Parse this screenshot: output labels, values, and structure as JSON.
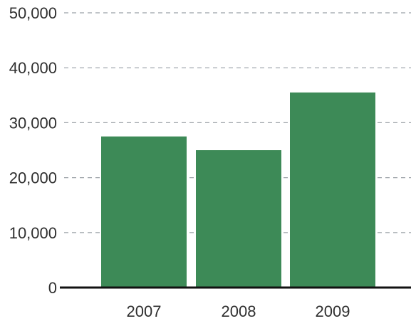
{
  "chart_data": {
    "type": "bar",
    "title": "",
    "xlabel": "",
    "ylabel": "",
    "categories": [
      "2007",
      "2008",
      "2009"
    ],
    "values": [
      27500,
      25000,
      35500
    ],
    "ylim": [
      0,
      50000
    ],
    "yticks": [
      0,
      10000,
      20000,
      30000,
      40000,
      50000
    ],
    "ytick_labels": [
      "0",
      "10,000",
      "20,000",
      "30,000",
      "40,000",
      "50,000"
    ],
    "grid": true,
    "legend": "none",
    "colors": {
      "bar": "#3d8a57",
      "grid": "#9aa0a6",
      "axis": "#111111",
      "text": "#2f2f2f"
    }
  }
}
